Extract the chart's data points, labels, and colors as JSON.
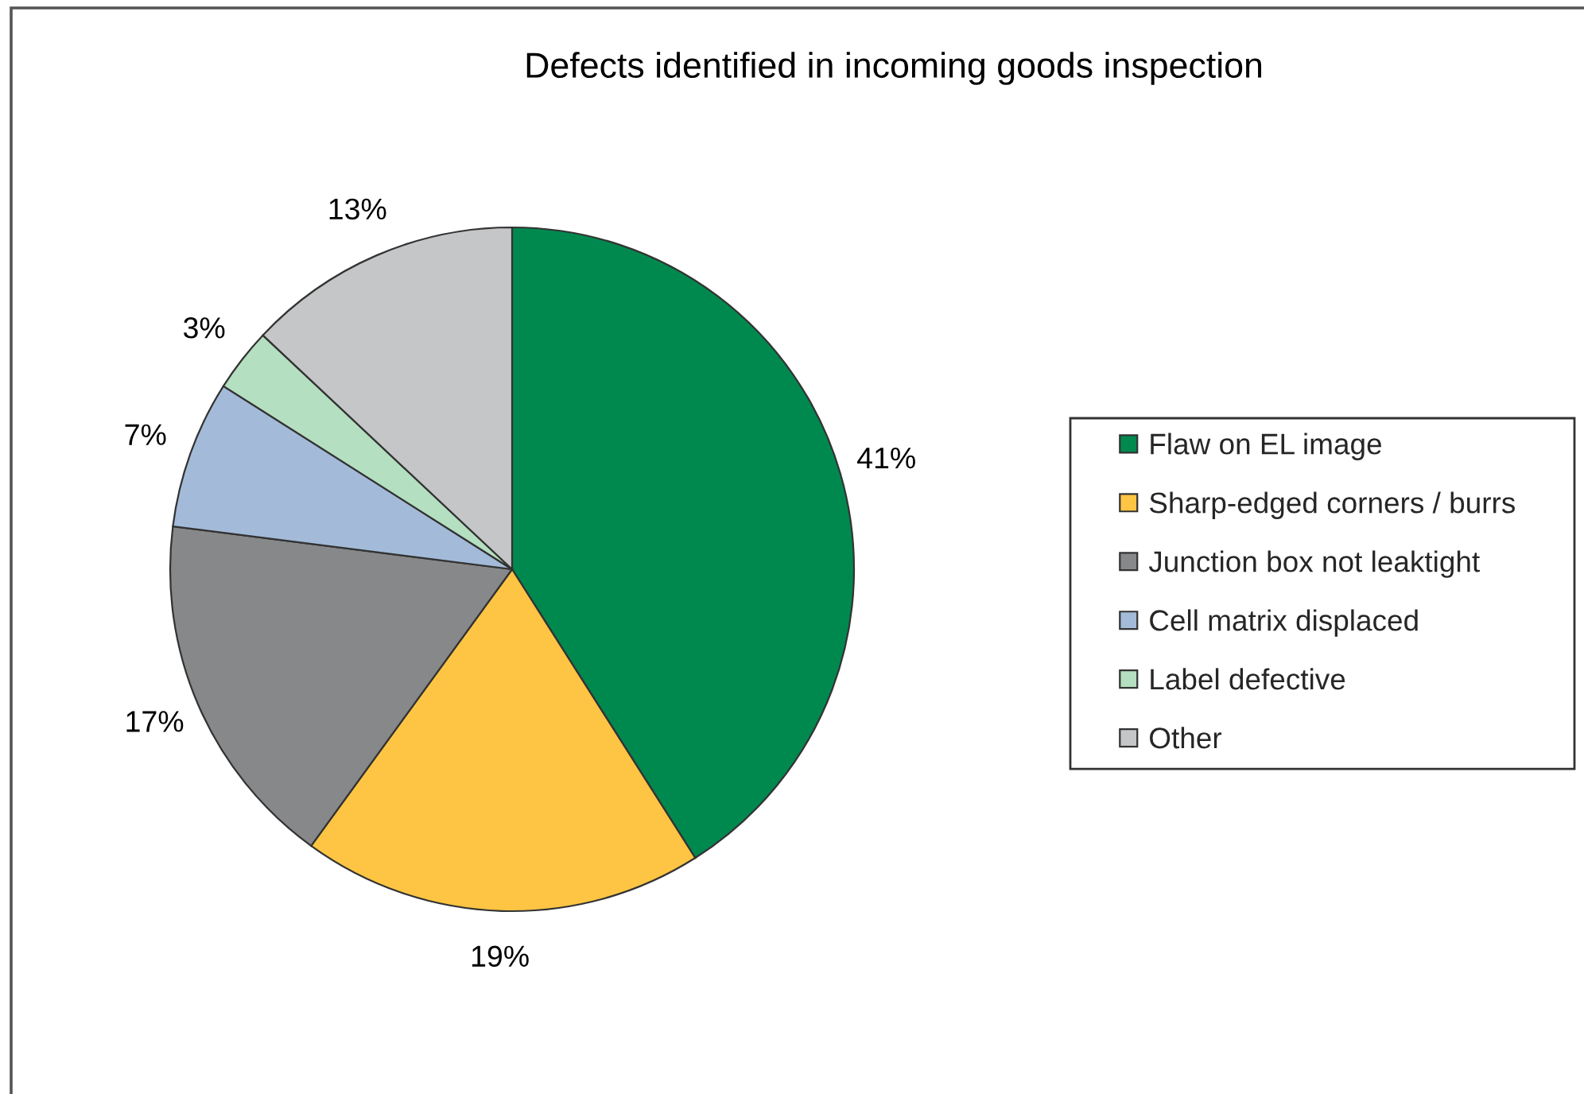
{
  "chart_data": {
    "type": "pie",
    "title": "Defects identified in incoming goods inspection",
    "categories": [
      "Flaw on EL image",
      "Sharp-edged corners / burrs",
      "Junction box not leaktight",
      "Cell matrix displaced",
      "Label defective",
      "Other"
    ],
    "values": [
      41,
      19,
      17,
      7,
      3,
      13
    ],
    "colors": [
      "#00894f",
      "#fdc543",
      "#87888a",
      "#a3bbd9",
      "#b4dfc0",
      "#c5c6c8"
    ],
    "value_labels": [
      "41%",
      "19%",
      "17%",
      "7%",
      "3%",
      "13%"
    ],
    "legend": "right"
  }
}
